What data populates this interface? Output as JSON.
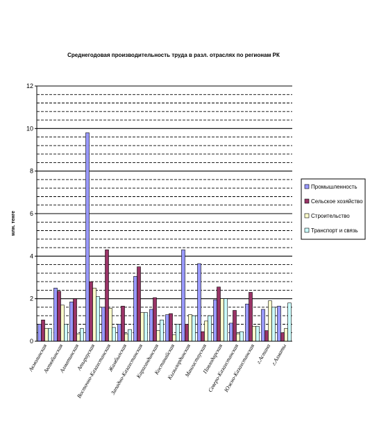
{
  "chart_data": {
    "type": "bar",
    "title": "Среднегодовая производительность труда в разл. отраслях по регионам РК",
    "ylabel": "млн. тенге",
    "xlabel": "",
    "ylim": [
      0,
      12
    ],
    "y_ticks": [
      "0",
      "2",
      "4",
      "6",
      "8",
      "10",
      "12"
    ],
    "grid": "dashed major and minor horizontal lines",
    "legend_position": "right",
    "categories": [
      "Акмолинская",
      "Актюбинская",
      "Алматинская",
      "Атырауская",
      "Восточно-Казахстанская",
      "Жамбылская",
      "Западно-Казахстанская",
      "Карагандинская",
      "Костанайская",
      "Кызылординская",
      "Мангистауская",
      "Павлодарская",
      "Северо-Казахстанская",
      "Южно-Казахстанская",
      "г.Астана",
      "г.Алматы"
    ],
    "series": [
      {
        "name": "Промышленность",
        "color": "#9999ff",
        "values": [
          0.8,
          2.5,
          1.85,
          9.8,
          1.6,
          0.8,
          3.05,
          1.5,
          1.25,
          4.3,
          3.65,
          1.95,
          0.85,
          1.75,
          1.5,
          1.65
        ]
      },
      {
        "name": "Сельское хозяйство",
        "color": "#993366",
        "values": [
          1.0,
          2.35,
          2.0,
          2.8,
          4.3,
          1.65,
          3.5,
          2.05,
          1.3,
          0.8,
          0.45,
          2.55,
          1.45,
          2.3,
          0.5,
          0.4
        ]
      },
      {
        "name": "Строительство",
        "color": "#ffffcc",
        "values": [
          0.6,
          1.7,
          0.35,
          2.5,
          1.55,
          0.35,
          1.35,
          0.5,
          0.3,
          1.25,
          0.95,
          2.0,
          0.35,
          0.7,
          1.9,
          0.6
        ]
      },
      {
        "name": "Транспорт и связь",
        "color": "#ccffff",
        "values": [
          0.6,
          0.8,
          0.6,
          2.1,
          0.65,
          0.55,
          1.35,
          1.0,
          0.8,
          1.2,
          1.2,
          2.0,
          0.45,
          0.7,
          1.6,
          1.8
        ]
      }
    ]
  }
}
